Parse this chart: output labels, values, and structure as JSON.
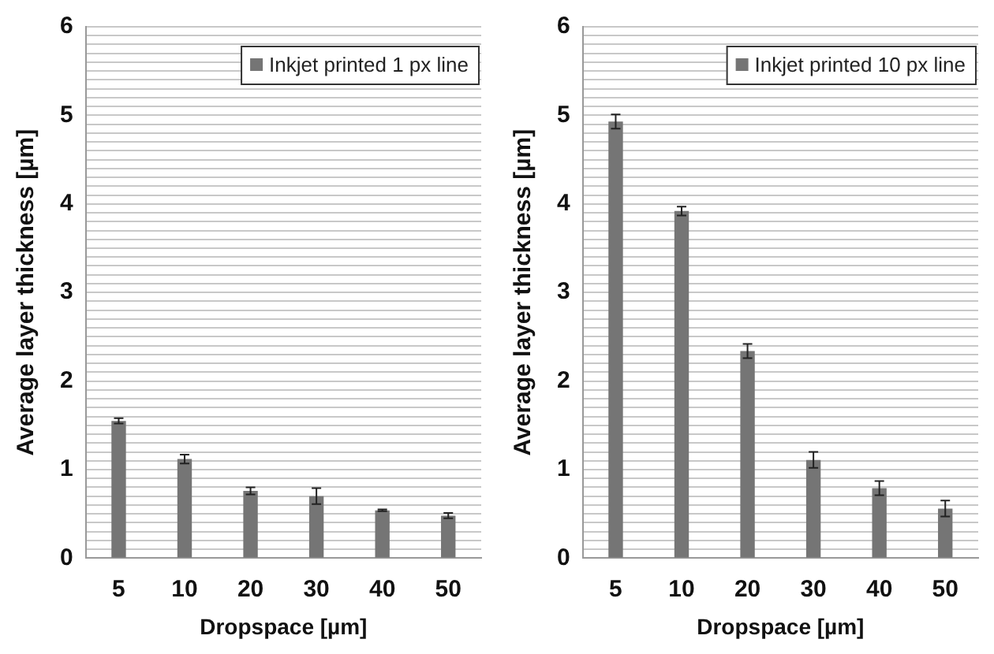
{
  "chart_data": [
    {
      "type": "bar",
      "xlabel": "Dropspace [µm]",
      "ylabel": "Average layer thickness [µm]",
      "categories": [
        "5",
        "10",
        "20",
        "30",
        "40",
        "50"
      ],
      "series": [
        {
          "name": "Inkjet printed 1 px line",
          "color": "#757575",
          "values": [
            1.55,
            1.12,
            0.76,
            0.7,
            0.54,
            0.48
          ],
          "errors": [
            0.03,
            0.05,
            0.04,
            0.09,
            0.01,
            0.03
          ]
        }
      ],
      "ylim": [
        0,
        6
      ],
      "yticks": [
        0,
        {
          "value": 0.1,
          "label": null
        },
        {
          "value": 0.2,
          "label": null
        },
        {
          "value": 0.3,
          "label": null
        },
        {
          "value": 0.4,
          "label": null
        },
        {
          "value": 0.5,
          "label": null
        },
        {
          "value": 0.6,
          "label": null
        },
        {
          "value": 0.7,
          "label": null
        },
        {
          "value": 0.8,
          "label": null
        },
        {
          "value": 0.9,
          "label": null
        },
        1,
        {
          "value": 1.1,
          "label": null
        },
        {
          "value": 1.2,
          "label": null
        },
        {
          "value": 1.3,
          "label": null
        },
        {
          "value": 1.4,
          "label": null
        },
        {
          "value": 1.5,
          "label": null
        },
        {
          "value": 1.6,
          "label": null
        },
        {
          "value": 1.7,
          "label": null
        },
        {
          "value": 1.8,
          "label": null
        },
        {
          "value": 1.9,
          "label": null
        },
        2,
        {
          "value": 2.1,
          "label": null
        },
        {
          "value": 2.2,
          "label": null
        },
        {
          "value": 2.3,
          "label": null
        },
        {
          "value": 2.4,
          "label": null
        },
        {
          "value": 2.5,
          "label": null
        },
        {
          "value": 2.6,
          "label": null
        },
        {
          "value": 2.7,
          "label": null
        },
        {
          "value": 2.8,
          "label": null
        },
        {
          "value": 2.9,
          "label": null
        },
        3,
        {
          "value": 3.1,
          "label": null
        },
        {
          "value": 3.2,
          "label": null
        },
        {
          "value": 3.3,
          "label": null
        },
        {
          "value": 3.4,
          "label": null
        },
        {
          "value": 3.5,
          "label": null
        },
        {
          "value": 3.6,
          "label": null
        },
        {
          "value": 3.7,
          "label": null
        },
        {
          "value": 3.8,
          "label": null
        },
        {
          "value": 3.9,
          "label": null
        },
        4,
        {
          "value": 4.1,
          "label": null
        },
        {
          "value": 4.2,
          "label": null
        },
        {
          "value": 4.3,
          "label": null
        },
        {
          "value": 4.4,
          "label": null
        },
        {
          "value": 4.5,
          "label": null
        },
        {
          "value": 4.6,
          "label": null
        },
        {
          "value": 4.7,
          "label": null
        },
        {
          "value": 4.8,
          "label": null
        },
        {
          "value": 4.9,
          "label": null
        },
        5,
        {
          "value": 5.1,
          "label": null
        },
        {
          "value": 5.2,
          "label": null
        },
        {
          "value": 5.3,
          "label": null
        },
        {
          "value": 5.4,
          "label": null
        },
        {
          "value": 5.5,
          "label": null
        },
        {
          "value": 5.6,
          "label": null
        },
        {
          "value": 5.7,
          "label": null
        },
        {
          "value": 5.8,
          "label": null
        },
        {
          "value": 5.9,
          "label": null
        },
        6
      ],
      "grid": "y",
      "legend": "top right"
    },
    {
      "type": "bar",
      "xlabel": "Dropspace [µm]",
      "ylabel": "Average layer thickness [µm]",
      "categories": [
        "5",
        "10",
        "20",
        "30",
        "40",
        "50"
      ],
      "series": [
        {
          "name": "Inkjet printed 10 px line",
          "color": "#757575",
          "values": [
            4.93,
            3.92,
            2.34,
            1.11,
            0.79,
            0.56
          ],
          "errors": [
            0.08,
            0.05,
            0.08,
            0.09,
            0.08,
            0.09
          ]
        }
      ],
      "ylim": [
        0,
        6
      ],
      "yticks": [
        0,
        {
          "value": 0.1,
          "label": null
        },
        {
          "value": 0.2,
          "label": null
        },
        {
          "value": 0.3,
          "label": null
        },
        {
          "value": 0.4,
          "label": null
        },
        {
          "value": 0.5,
          "label": null
        },
        {
          "value": 0.6,
          "label": null
        },
        {
          "value": 0.7,
          "label": null
        },
        {
          "value": 0.8,
          "label": null
        },
        {
          "value": 0.9,
          "label": null
        },
        1,
        {
          "value": 1.1,
          "label": null
        },
        {
          "value": 1.2,
          "label": null
        },
        {
          "value": 1.3,
          "label": null
        },
        {
          "value": 1.4,
          "label": null
        },
        {
          "value": 1.5,
          "label": null
        },
        {
          "value": 1.6,
          "label": null
        },
        {
          "value": 1.7,
          "label": null
        },
        {
          "value": 1.8,
          "label": null
        },
        {
          "value": 1.9,
          "label": null
        },
        2,
        {
          "value": 2.1,
          "label": null
        },
        {
          "value": 2.2,
          "label": null
        },
        {
          "value": 2.3,
          "label": null
        },
        {
          "value": 2.4,
          "label": null
        },
        {
          "value": 2.5,
          "label": null
        },
        {
          "value": 2.6,
          "label": null
        },
        {
          "value": 2.7,
          "label": null
        },
        {
          "value": 2.8,
          "label": null
        },
        {
          "value": 2.9,
          "label": null
        },
        3,
        {
          "value": 3.1,
          "label": null
        },
        {
          "value": 3.2,
          "label": null
        },
        {
          "value": 3.3,
          "label": null
        },
        {
          "value": 3.4,
          "label": null
        },
        {
          "value": 3.5,
          "label": null
        },
        {
          "value": 3.6,
          "label": null
        },
        {
          "value": 3.7,
          "label": null
        },
        {
          "value": 3.8,
          "label": null
        },
        {
          "value": 3.9,
          "label": null
        },
        4,
        {
          "value": 4.1,
          "label": null
        },
        {
          "value": 4.2,
          "label": null
        },
        {
          "value": 4.3,
          "label": null
        },
        {
          "value": 4.4,
          "label": null
        },
        {
          "value": 4.5,
          "label": null
        },
        {
          "value": 4.6,
          "label": null
        },
        {
          "value": 4.7,
          "label": null
        },
        {
          "value": 4.8,
          "label": null
        },
        {
          "value": 4.9,
          "label": null
        },
        5,
        {
          "value": 5.1,
          "label": null
        },
        {
          "value": 5.2,
          "label": null
        },
        {
          "value": 5.3,
          "label": null
        },
        {
          "value": 5.4,
          "label": null
        },
        {
          "value": 5.5,
          "label": null
        },
        {
          "value": 5.6,
          "label": null
        },
        {
          "value": 5.7,
          "label": null
        },
        {
          "value": 5.8,
          "label": null
        },
        {
          "value": 5.9,
          "label": null
        },
        6
      ],
      "grid": "y",
      "legend": "top right"
    }
  ]
}
